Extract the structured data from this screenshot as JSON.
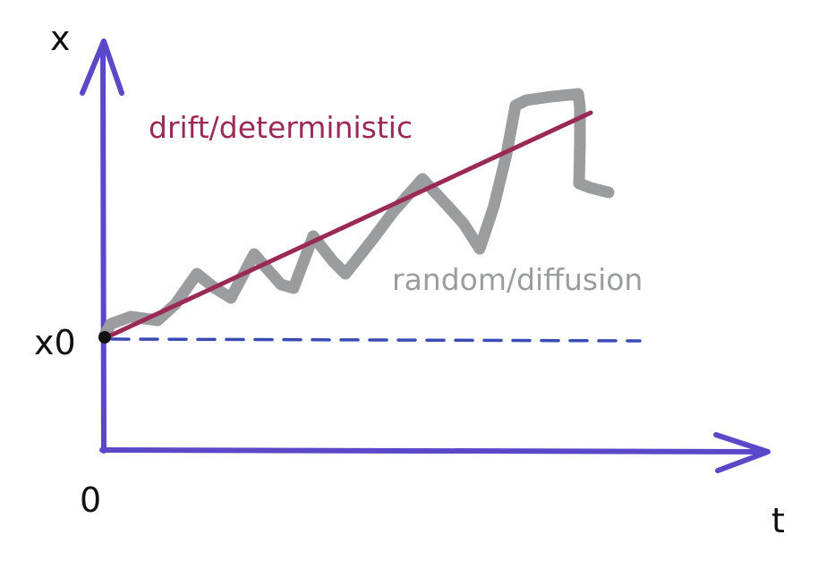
{
  "diagram": {
    "axes": {
      "y_label": "x",
      "x_label": "t",
      "origin_label": "0",
      "start_label": "x0"
    },
    "annotations": {
      "drift_label": "drift/deterministic",
      "diffusion_label": "random/diffusion"
    },
    "colors": {
      "axis": "#5a48c8",
      "baseline": "#3a4bb5",
      "drift": "#9a2a55",
      "diffusion": "#9a9c9e",
      "text": "#111111"
    }
  }
}
